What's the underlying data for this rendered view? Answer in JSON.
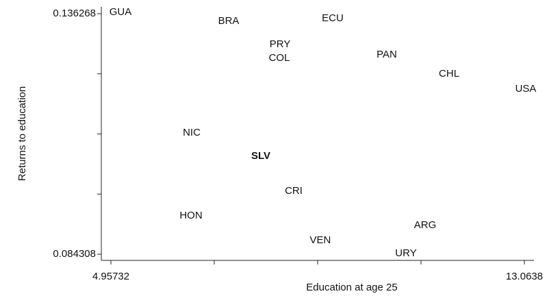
{
  "chart_data": {
    "type": "scatter",
    "x_label": "Education at age 25",
    "y_label": "Returns to education",
    "labels": [
      "GUA",
      "BRA",
      "ECU",
      "PRY",
      "COL",
      "PAN",
      "CHL",
      "USA",
      "NIC",
      "SLV",
      "CRI",
      "HON",
      "ARG",
      "VEN",
      "URY"
    ],
    "x": [
      5.145,
      7.266,
      9.306,
      8.273,
      8.259,
      10.366,
      11.588,
      13.091,
      6.541,
      7.897,
      8.541,
      6.528,
      11.118,
      9.064,
      10.742
    ],
    "values": [
      0.13656,
      0.13464,
      0.13523,
      0.12961,
      0.12665,
      0.12739,
      0.12324,
      0.12001,
      0.11051,
      0.10548,
      0.09793,
      0.0926,
      0.09053,
      0.08727,
      0.08446
    ],
    "bold": [
      false,
      false,
      false,
      false,
      false,
      false,
      false,
      false,
      false,
      true,
      false,
      false,
      false,
      false,
      false
    ],
    "xlim": [
      4.7694,
      13.2517
    ],
    "ylim": [
      0.08298,
      0.13775
    ],
    "xticks": [
      4.95732,
      {
        "value": 6.98394,
        "label": null
      },
      {
        "value": 9.01056,
        "label": null
      },
      {
        "value": 11.03718,
        "label": null
      },
      13.0638
    ],
    "yticks": [
      0.084308,
      {
        "value": 0.097298,
        "label": null
      },
      {
        "value": 0.110288,
        "label": null
      },
      {
        "value": 0.123278,
        "label": null
      },
      0.136268
    ]
  }
}
